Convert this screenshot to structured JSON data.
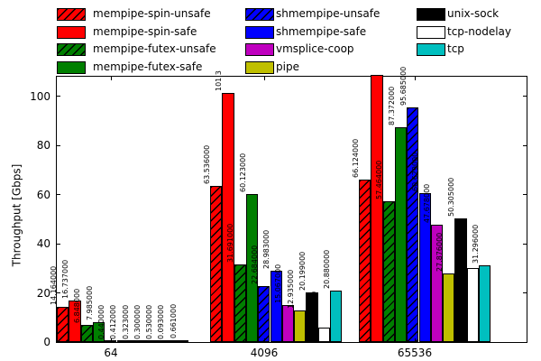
{
  "chart_data": {
    "type": "bar",
    "title": "",
    "xlabel": "",
    "ylabel": "Throughput [Gbps]",
    "categories": [
      "64",
      "4096",
      "65536"
    ],
    "ylim": [
      0,
      108
    ],
    "yticks": [
      "0",
      "20",
      "40",
      "60",
      "80",
      "100"
    ],
    "grid": false,
    "legend_position": "top-3-columns",
    "bar_edge_color": "#000000",
    "series": [
      {
        "name": "mempipe-spin-unsafe",
        "color": "#ff0000",
        "hatched": true,
        "values": [
          14.164,
          63.536,
          66.124
        ],
        "labels": [
          "14.164000",
          "63.536000",
          "66.124000"
        ]
      },
      {
        "name": "mempipe-spin-safe",
        "color": "#ff0000",
        "hatched": false,
        "values": [
          16.737,
          101.3,
          null
        ],
        "labels": [
          "16.737000",
          "101.3",
          null
        ],
        "note": "4096 label clipped at axes top; 65536 bar exceeds y-axis and is clipped"
      },
      {
        "name": "mempipe-futex-unsafe",
        "color": "#007f00",
        "hatched": true,
        "values": [
          6.848,
          31.691,
          57.464
        ],
        "labels": [
          "6.848000",
          "31.691000",
          "57.464000"
        ]
      },
      {
        "name": "mempipe-futex-safe",
        "color": "#007f00",
        "hatched": false,
        "values": [
          7.985,
          60.123,
          87.372
        ],
        "labels": [
          "7.985000",
          "60.123000",
          "87.372000"
        ]
      },
      {
        "name": "shmempipe-unsafe",
        "color": "#0000ff",
        "hatched": true,
        "values": [
          0.44,
          22.684,
          95.685
        ],
        "labels": [
          "0.440000",
          "22.684000",
          "95.685000"
        ]
      },
      {
        "name": "shmempipe-safe",
        "color": "#0000ff",
        "hatched": false,
        "values": [
          0.412,
          28.983,
          60.629
        ],
        "labels": [
          "0.412000",
          "28.983000",
          "60.629000"
        ]
      },
      {
        "name": "vmsplice-coop",
        "color": "#bf00bf",
        "hatched": false,
        "values": [
          0.323,
          15.067,
          47.678
        ],
        "labels": [
          "0.323000",
          "15.067000",
          "47.678000"
        ]
      },
      {
        "name": "pipe",
        "color": "#bfbf00",
        "hatched": false,
        "values": [
          0.3,
          12.935,
          27.876
        ],
        "labels": [
          "0.300000",
          "12.935000",
          "27.876000"
        ]
      },
      {
        "name": "unix-sock",
        "color": "#000000",
        "hatched": false,
        "values": [
          0.53,
          20.199,
          50.305
        ],
        "labels": [
          "0.530000",
          "20.199000",
          "50.305000"
        ]
      },
      {
        "name": "tcp-nodelay",
        "color": "#ffffff",
        "hatched": false,
        "values": [
          0.093,
          5.807,
          30.029
        ],
        "labels": [
          "0.093000",
          "5.807000",
          "30.029000"
        ]
      },
      {
        "name": "tcp",
        "color": "#00bfbf",
        "hatched": false,
        "values": [
          0.661,
          20.88,
          31.296
        ],
        "labels": [
          "0.661000",
          "20.880000",
          "31.296000"
        ]
      }
    ],
    "legend_columns": [
      [
        "mempipe-spin-unsafe",
        "mempipe-spin-safe",
        "mempipe-futex-unsafe",
        "mempipe-futex-safe"
      ],
      [
        "shmempipe-unsafe",
        "shmempipe-safe",
        "vmsplice-coop",
        "pipe"
      ],
      [
        "unix-sock",
        "tcp-nodelay",
        "tcp"
      ]
    ]
  }
}
